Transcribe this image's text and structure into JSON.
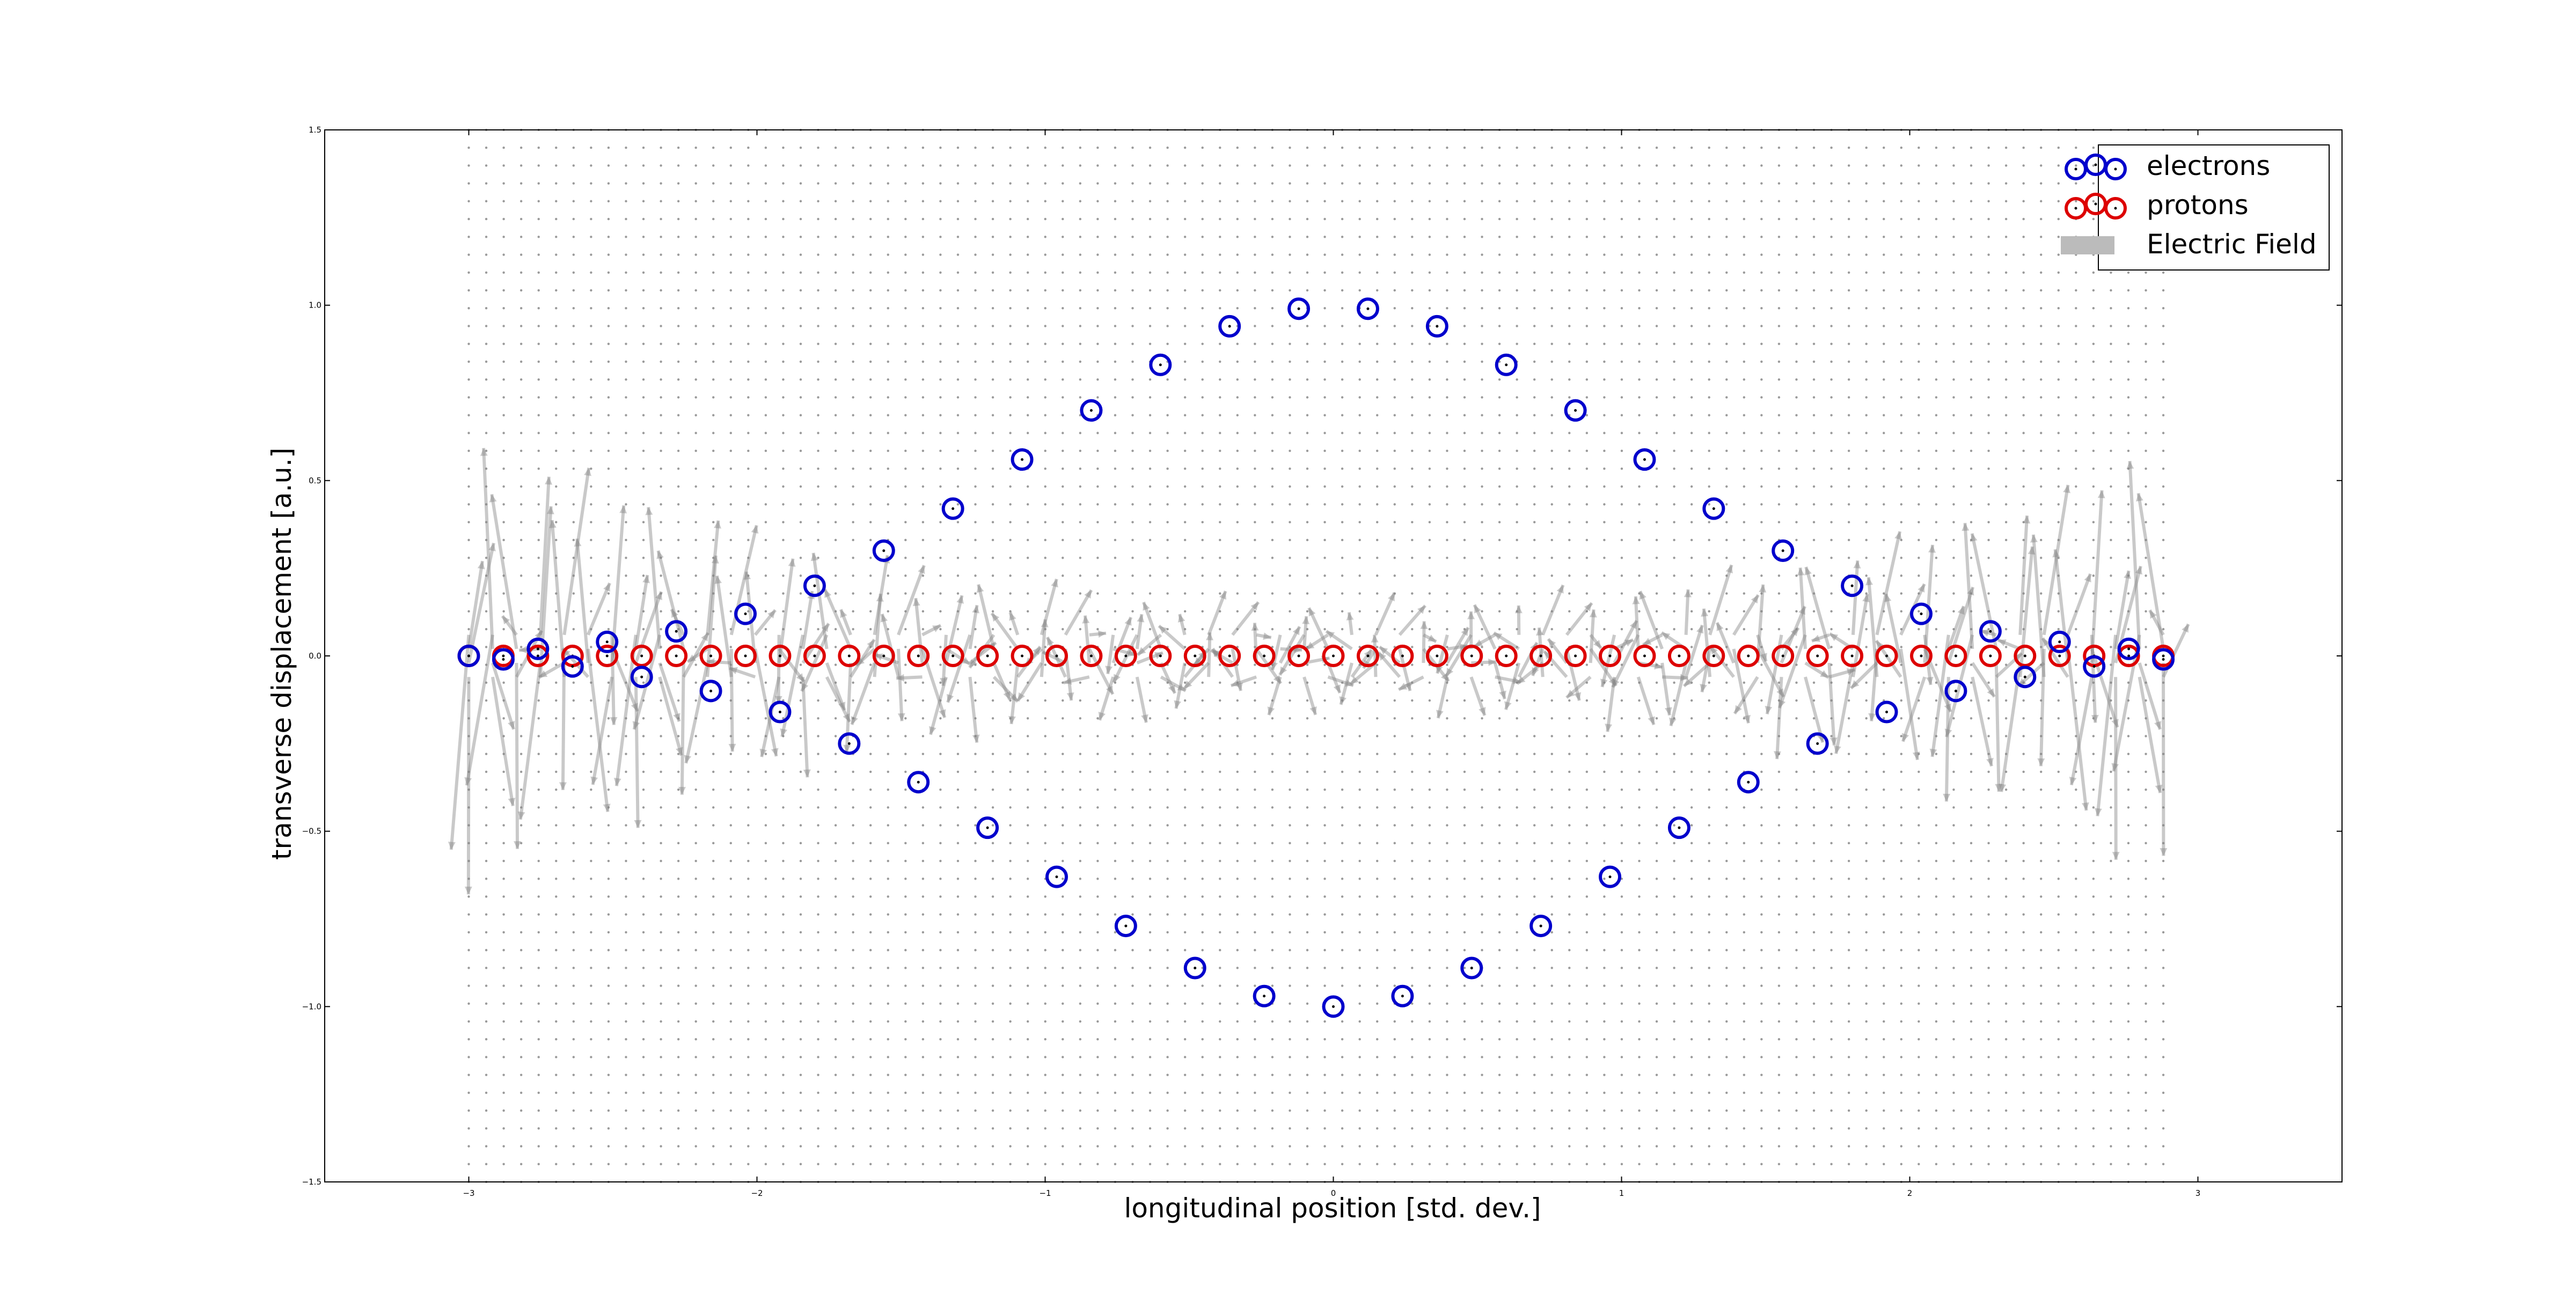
{
  "chart_data": {
    "type": "scatter",
    "title": "",
    "xlabel": "longitudinal position [std. dev.]",
    "ylabel": "transverse displacement [a.u.]",
    "xlim": [
      -3.5,
      3.5
    ],
    "ylim": [
      -1.5,
      1.5
    ],
    "xticks": [
      -3,
      -2,
      -1,
      0,
      1,
      2,
      3
    ],
    "yticks": [
      -1.5,
      -1.0,
      -0.5,
      0.0,
      0.5,
      1.0,
      1.5
    ],
    "xtick_labels": [
      "−3",
      "−2",
      "−1",
      "0",
      "1",
      "2",
      "3"
    ],
    "ytick_labels": [
      "−1.5",
      "−1.0",
      "−0.5",
      "0.0",
      "0.5",
      "1.0",
      "1.5"
    ],
    "grid": false,
    "legend_position": "top-right",
    "series": [
      {
        "name": "electrons",
        "color": "#0000cc",
        "marker": "circle-open-with-dot",
        "x": [
          -3.0,
          -2.88,
          -2.76,
          -2.64,
          -2.52,
          -2.4,
          -2.28,
          -2.16,
          -2.04,
          -1.92,
          -1.8,
          -1.68,
          -1.56,
          -1.44,
          -1.32,
          -1.2,
          -1.08,
          -0.96,
          -0.84,
          -0.72,
          -0.6,
          -0.48,
          -0.36,
          -0.24,
          -0.12,
          0.0,
          0.12,
          0.24,
          0.36,
          0.48,
          0.6,
          0.72,
          0.84,
          0.96,
          1.08,
          1.2,
          1.32,
          1.44,
          1.56,
          1.68,
          1.8,
          1.92,
          2.04,
          2.16,
          2.28,
          2.4,
          2.52,
          2.64,
          2.76,
          2.88
        ],
        "y": [
          0.0,
          -0.01,
          0.02,
          -0.03,
          0.04,
          -0.06,
          0.07,
          -0.1,
          0.12,
          -0.16,
          0.2,
          -0.25,
          0.3,
          -0.36,
          0.42,
          -0.49,
          0.56,
          -0.63,
          0.7,
          -0.77,
          0.83,
          -0.89,
          0.94,
          -0.97,
          0.99,
          -1.0,
          0.99,
          -0.97,
          0.94,
          -0.89,
          0.83,
          -0.77,
          0.7,
          -0.63,
          0.56,
          -0.49,
          0.42,
          -0.36,
          0.3,
          -0.25,
          0.2,
          -0.16,
          0.12,
          -0.1,
          0.07,
          -0.06,
          0.04,
          -0.03,
          0.02,
          -0.01
        ]
      },
      {
        "name": "protons",
        "color": "#dd0000",
        "marker": "circle-open-with-dot",
        "x": [
          -3.0,
          -2.88,
          -2.76,
          -2.64,
          -2.52,
          -2.4,
          -2.28,
          -2.16,
          -2.04,
          -1.92,
          -1.8,
          -1.68,
          -1.56,
          -1.44,
          -1.32,
          -1.2,
          -1.08,
          -0.96,
          -0.84,
          -0.72,
          -0.6,
          -0.48,
          -0.36,
          -0.24,
          -0.12,
          0.0,
          0.12,
          0.24,
          0.36,
          0.48,
          0.6,
          0.72,
          0.84,
          0.96,
          1.08,
          1.2,
          1.32,
          1.44,
          1.56,
          1.68,
          1.8,
          1.92,
          2.04,
          2.16,
          2.28,
          2.4,
          2.52,
          2.64,
          2.76,
          2.88
        ],
        "y": [
          0.0,
          0.0,
          0.0,
          0.0,
          0.0,
          0.0,
          0.0,
          0.0,
          0.0,
          0.0,
          0.0,
          0.0,
          0.0,
          0.0,
          0.0,
          0.0,
          0.0,
          0.0,
          0.0,
          0.0,
          0.0,
          0.0,
          0.0,
          0.0,
          0.0,
          0.0,
          0.0,
          0.0,
          0.0,
          0.0,
          0.0,
          0.0,
          0.0,
          0.0,
          0.0,
          0.0,
          0.0,
          0.0,
          0.0,
          0.0,
          0.0,
          0.0,
          0.0,
          0.0,
          0.0,
          0.0,
          0.0,
          0.0,
          0.0,
          0.0
        ]
      },
      {
        "name": "Electric Field",
        "color": "#808080",
        "marker": "quiver",
        "x_range": [
          -3.0,
          2.88
        ],
        "y_range": [
          -1.5,
          1.5
        ]
      }
    ]
  }
}
